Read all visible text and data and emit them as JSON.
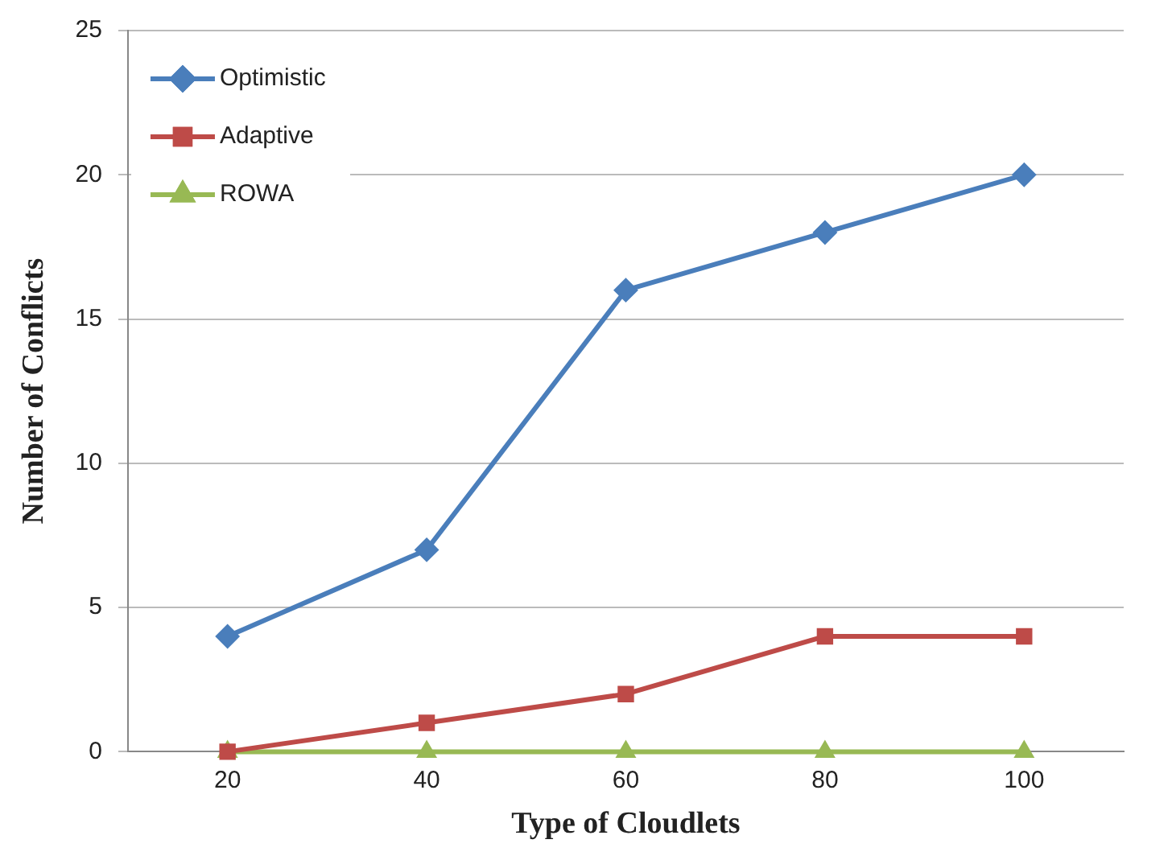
{
  "chart_data": {
    "type": "line",
    "xlabel": "Type of Cloudlets",
    "ylabel": "Number of Conflicts",
    "categories": [
      "20",
      "40",
      "60",
      "80",
      "100"
    ],
    "series": [
      {
        "name": "Optimistic",
        "color": "#4a7ebb",
        "marker": "diamond",
        "values": [
          4,
          7,
          16,
          18,
          20
        ]
      },
      {
        "name": "Adaptive",
        "color": "#be4b48",
        "marker": "square",
        "values": [
          0,
          1,
          2,
          4,
          4
        ]
      },
      {
        "name": "ROWA",
        "color": "#98b954",
        "marker": "triangle",
        "values": [
          0,
          0,
          0,
          0,
          0
        ]
      }
    ],
    "ylim": [
      0,
      25
    ],
    "yticks": [
      0,
      5,
      10,
      15,
      20,
      25
    ],
    "grid": "y",
    "legend": "top left",
    "line_style": "solid"
  }
}
